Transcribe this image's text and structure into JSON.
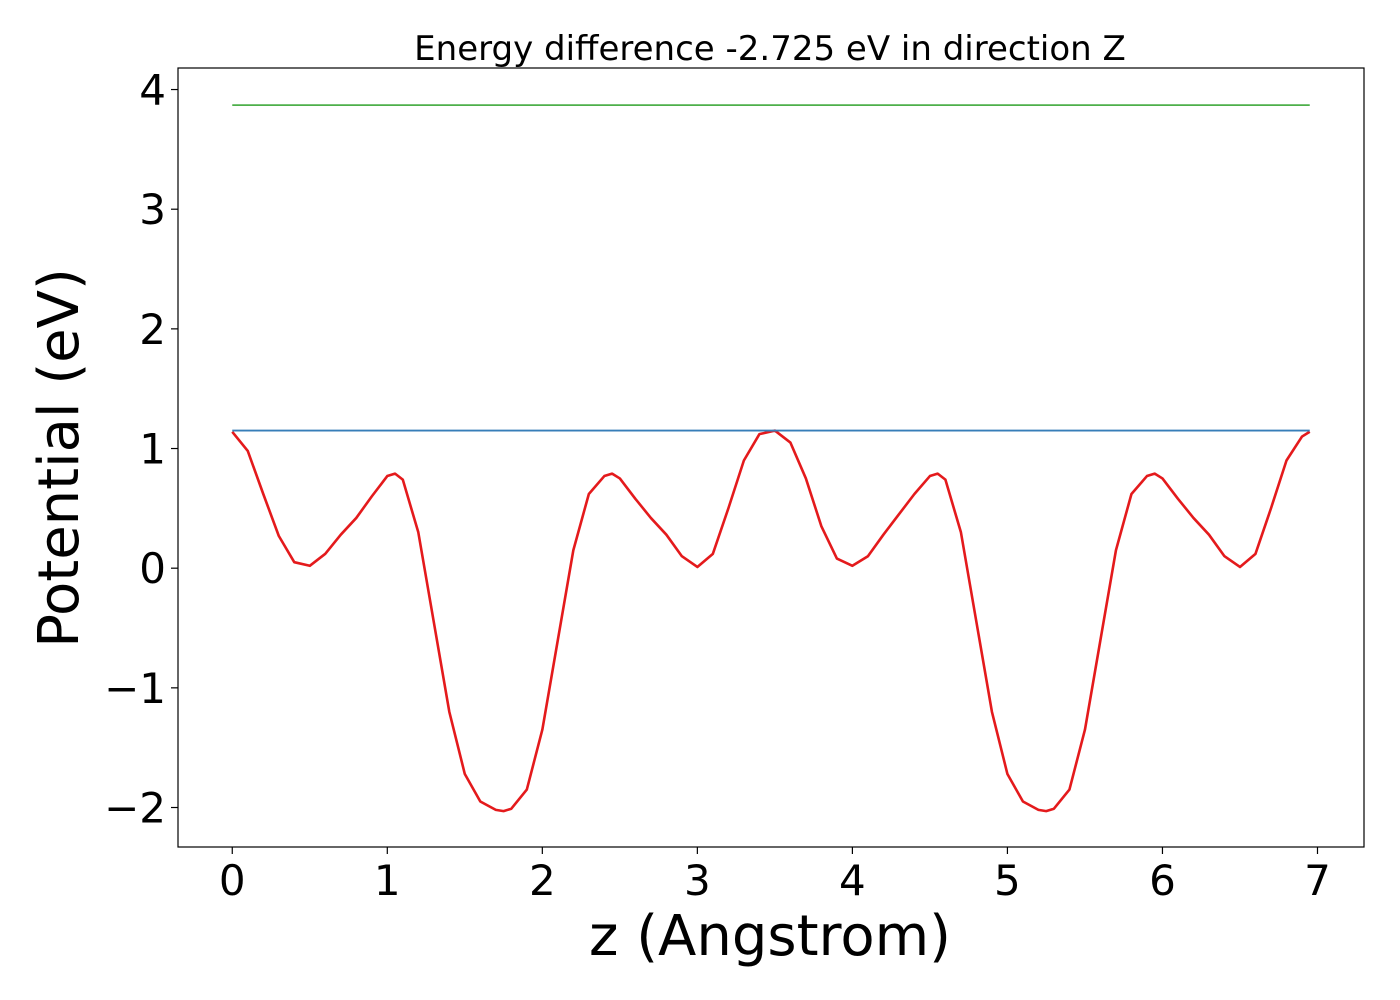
{
  "chart_data": {
    "type": "line",
    "title": "Energy difference -2.725 eV in direction Z",
    "xlabel": "z (Angstrom)",
    "ylabel": "Potential (eV)",
    "xlim": [
      -0.35,
      7.3
    ],
    "ylim": [
      -2.33,
      4.18
    ],
    "grid": false,
    "legend": "none",
    "x_ticks": [
      0,
      1,
      2,
      3,
      4,
      5,
      6,
      7
    ],
    "x_tick_labels": [
      "0",
      "1",
      "2",
      "3",
      "4",
      "5",
      "6",
      "7"
    ],
    "y_ticks": [
      -2,
      -1,
      0,
      1,
      2,
      3,
      4
    ],
    "y_tick_labels": [
      "−2",
      "−1",
      "0",
      "1",
      "2",
      "3",
      "4"
    ],
    "series": [
      {
        "color": "#e41a1c",
        "x": [
          0,
          0.1,
          0.2,
          0.3,
          0.4,
          0.5,
          0.6,
          0.7,
          0.8,
          0.9,
          1.0,
          1.05,
          1.1,
          1.2,
          1.3,
          1.4,
          1.5,
          1.6,
          1.7,
          1.75,
          1.8,
          1.9,
          2.0,
          2.1,
          2.2,
          2.3,
          2.4,
          2.45,
          2.5,
          2.6,
          2.7,
          2.8,
          2.9,
          3.0,
          3.1,
          3.2,
          3.3,
          3.4,
          3.5,
          3.6,
          3.7,
          3.8,
          3.9,
          4.0,
          4.1,
          4.2,
          4.3,
          4.4,
          4.5,
          4.55,
          4.6,
          4.7,
          4.8,
          4.9,
          5.0,
          5.1,
          5.2,
          5.25,
          5.3,
          5.4,
          5.5,
          5.6,
          5.7,
          5.8,
          5.9,
          5.95,
          6.0,
          6.1,
          6.2,
          6.3,
          6.4,
          6.5,
          6.6,
          6.7,
          6.8,
          6.9,
          6.95
        ],
        "y": [
          1.14,
          0.98,
          0.62,
          0.27,
          0.05,
          0.02,
          0.12,
          0.28,
          0.42,
          0.6,
          0.77,
          0.79,
          0.74,
          0.3,
          -0.45,
          -1.2,
          -1.72,
          -1.95,
          -2.02,
          -2.03,
          -2.01,
          -1.85,
          -1.35,
          -0.6,
          0.15,
          0.62,
          0.77,
          0.79,
          0.75,
          0.58,
          0.42,
          0.28,
          0.1,
          0.01,
          0.12,
          0.5,
          0.9,
          1.12,
          1.15,
          1.05,
          0.75,
          0.35,
          0.08,
          0.02,
          0.1,
          0.28,
          0.45,
          0.62,
          0.77,
          0.79,
          0.74,
          0.3,
          -0.45,
          -1.2,
          -1.72,
          -1.95,
          -2.02,
          -2.03,
          -2.01,
          -1.85,
          -1.35,
          -0.6,
          0.15,
          0.62,
          0.77,
          0.79,
          0.75,
          0.58,
          0.42,
          0.28,
          0.1,
          0.01,
          0.12,
          0.5,
          0.9,
          1.1,
          1.14
        ]
      },
      {
        "color": "#377eb8",
        "x": [
          0,
          6.95
        ],
        "y": [
          1.15,
          1.15
        ]
      },
      {
        "color": "#4daf4a",
        "x": [
          0,
          6.95
        ],
        "y": [
          3.87,
          3.87
        ]
      }
    ]
  }
}
